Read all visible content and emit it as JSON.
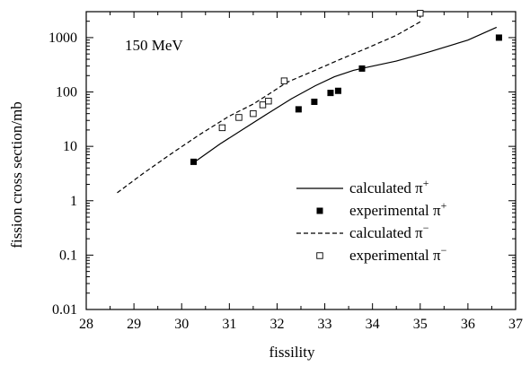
{
  "chart_data": {
    "type": "line",
    "title": "",
    "annotation": "150 MeV",
    "xlabel": "fissility",
    "ylabel": "fission cross section/mb",
    "xlim": [
      28,
      37
    ],
    "ylim": [
      0.01,
      3000
    ],
    "yscale": "log",
    "x_ticks": [
      "28",
      "29",
      "30",
      "31",
      "32",
      "33",
      "34",
      "35",
      "36",
      "37"
    ],
    "y_ticks": [
      {
        "v": 0.01,
        "label": "0.01"
      },
      {
        "v": 0.1,
        "label": "0.1"
      },
      {
        "v": 1,
        "label": "1"
      },
      {
        "v": 10,
        "label": "10"
      },
      {
        "v": 100,
        "label": "100"
      },
      {
        "v": 1000,
        "label": "1000"
      }
    ],
    "grid": false,
    "legend_position": "bottom-right",
    "series": [
      {
        "name": "calculated π⁺",
        "kind": "line",
        "dash": "solid",
        "color": "#000000",
        "x": [
          30.25,
          30.8,
          31.3,
          31.8,
          32.3,
          32.8,
          33.2,
          33.6,
          33.85,
          34.5,
          35.2,
          36.0,
          36.6
        ],
        "y": [
          5.0,
          11.0,
          21.0,
          40.0,
          75.0,
          130.0,
          190.0,
          250.0,
          280.0,
          370.0,
          550.0,
          900.0,
          1550.0
        ]
      },
      {
        "name": "experimental π⁺",
        "kind": "markers",
        "marker": "filled-square",
        "color": "#000000",
        "x": [
          30.25,
          32.45,
          32.78,
          33.12,
          33.28,
          33.78,
          36.65
        ],
        "y": [
          5.2,
          48,
          66,
          96,
          105,
          270,
          1000
        ]
      },
      {
        "name": "calculated π⁻",
        "kind": "line",
        "dash": "dashed",
        "color": "#000000",
        "x": [
          28.65,
          29.2,
          29.8,
          30.4,
          31.0,
          31.5,
          31.9,
          32.2,
          32.7,
          33.3,
          33.9,
          34.5,
          35.0
        ],
        "y": [
          1.4,
          3.2,
          7.5,
          17.0,
          36.0,
          60.0,
          100.0,
          150.0,
          230.0,
          390.0,
          650.0,
          1100.0,
          1950.0
        ]
      },
      {
        "name": "experimental π⁻",
        "kind": "markers",
        "marker": "open-square",
        "color": "#000000",
        "x": [
          30.85,
          31.2,
          31.5,
          31.7,
          31.82,
          32.15,
          35.0
        ],
        "y": [
          22,
          34,
          40,
          58,
          68,
          160,
          2800
        ]
      }
    ],
    "legend": [
      {
        "label": "calculated π",
        "sup": "+",
        "series": 0
      },
      {
        "label": "experimental π",
        "sup": "+",
        "series": 1
      },
      {
        "label": "calculated π",
        "sup": "−",
        "series": 2
      },
      {
        "label": "experimental π",
        "sup": "−",
        "series": 3
      }
    ]
  }
}
